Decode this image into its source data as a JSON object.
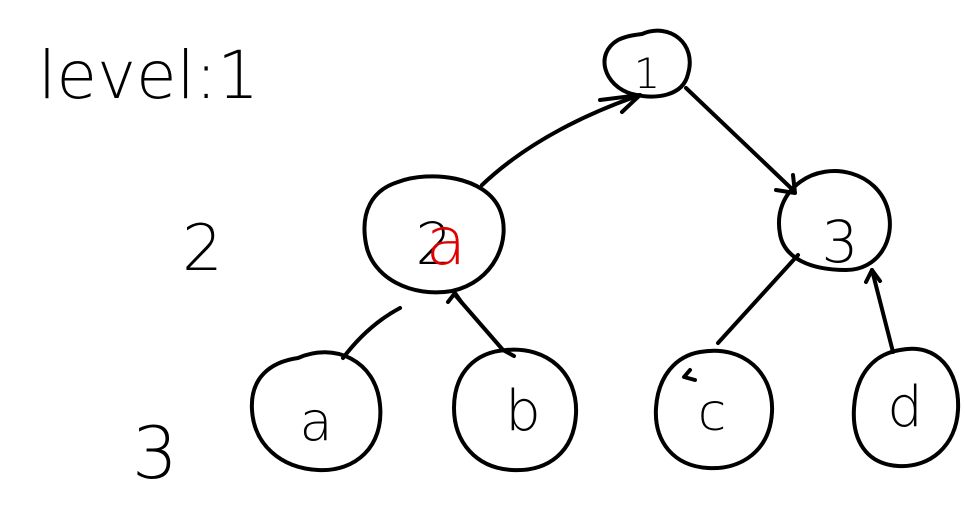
{
  "title": "level:1",
  "level_labels": {
    "level_2": "2",
    "level_3": "3"
  },
  "nodes": {
    "root": "1",
    "left": "2",
    "left_overwrite": "a",
    "right": "3",
    "leaf_a": "a",
    "leaf_b": "b",
    "leaf_c": "c",
    "leaf_d": "d"
  },
  "colors": {
    "ink": "#000000",
    "overwrite": "#e00000",
    "background": "#ffffff"
  }
}
